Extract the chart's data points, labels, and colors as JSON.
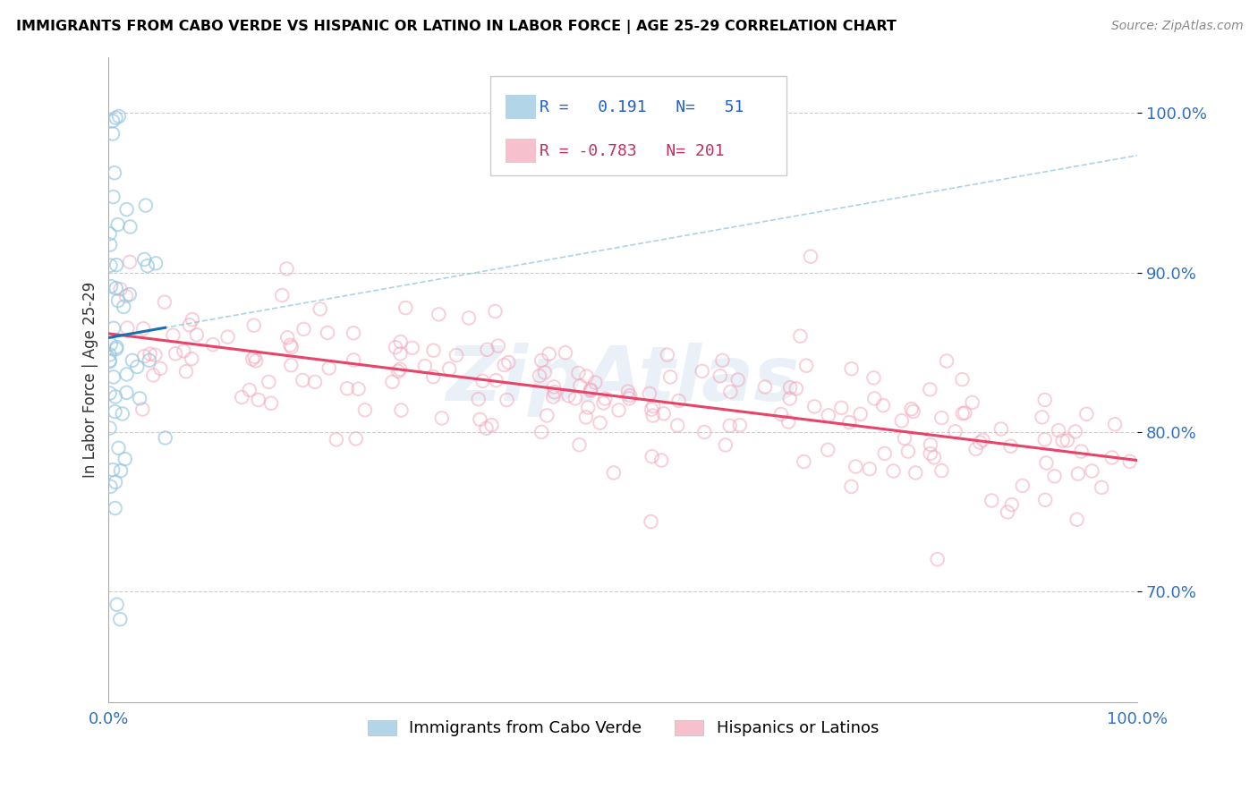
{
  "title": "IMMIGRANTS FROM CABO VERDE VS HISPANIC OR LATINO IN LABOR FORCE | AGE 25-29 CORRELATION CHART",
  "source": "Source: ZipAtlas.com",
  "ylabel": "In Labor Force | Age 25-29",
  "legend_blue_R": "0.191",
  "legend_blue_N": "51",
  "legend_pink_R": "-0.783",
  "legend_pink_N": "201",
  "blue_color": "#92c5de",
  "pink_color": "#f4a6b8",
  "blue_line_color": "#1a6faf",
  "pink_line_color": "#e8446a",
  "blue_dash_color": "#92c5de",
  "xlim": [
    0.0,
    1.0
  ],
  "ylim": [
    0.63,
    1.035
  ],
  "ytick_positions": [
    0.7,
    0.8,
    0.9,
    1.0
  ],
  "ytick_labels": [
    "70.0%",
    "80.0%",
    "90.0%",
    "100.0%"
  ],
  "xtick_positions": [
    0.0,
    1.0
  ],
  "xtick_labels": [
    "0.0%",
    "100.0%"
  ],
  "watermark": "ZipAtlas",
  "legend_label_blue": "Immigrants from Cabo Verde",
  "legend_label_pink": "Hispanics or Latinos",
  "scatter_size": 110,
  "scatter_lw": 1.4,
  "blue_alpha": 0.65,
  "pink_alpha": 0.55
}
